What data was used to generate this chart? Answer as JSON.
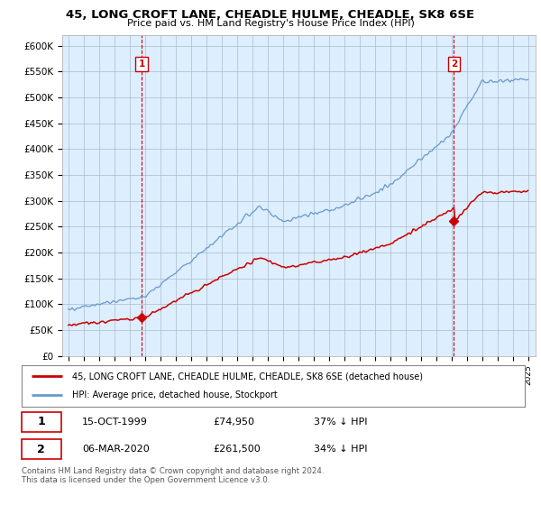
{
  "title": "45, LONG CROFT LANE, CHEADLE HULME, CHEADLE, SK8 6SE",
  "subtitle": "Price paid vs. HM Land Registry's House Price Index (HPI)",
  "ylabel_ticks": [
    "£0",
    "£50K",
    "£100K",
    "£150K",
    "£200K",
    "£250K",
    "£300K",
    "£350K",
    "£400K",
    "£450K",
    "£500K",
    "£550K",
    "£600K"
  ],
  "ytick_vals": [
    0,
    50000,
    100000,
    150000,
    200000,
    250000,
    300000,
    350000,
    400000,
    450000,
    500000,
    550000,
    600000
  ],
  "ylim": [
    0,
    620000
  ],
  "xlim_start": 1994.6,
  "xlim_end": 2025.5,
  "red_color": "#cc0000",
  "blue_color": "#6699cc",
  "plot_bg_color": "#ddeeff",
  "marker1_x": 1999.79,
  "marker1_y": 74950,
  "marker1_label": "1",
  "marker2_x": 2020.17,
  "marker2_y": 261500,
  "marker2_label": "2",
  "legend_line1": "45, LONG CROFT LANE, CHEADLE HULME, CHEADLE, SK8 6SE (detached house)",
  "legend_line2": "HPI: Average price, detached house, Stockport",
  "table_row1": [
    "1",
    "15-OCT-1999",
    "£74,950",
    "37% ↓ HPI"
  ],
  "table_row2": [
    "2",
    "06-MAR-2020",
    "£261,500",
    "34% ↓ HPI"
  ],
  "footer": "Contains HM Land Registry data © Crown copyright and database right 2024.\nThis data is licensed under the Open Government Licence v3.0.",
  "background_color": "#ffffff",
  "grid_color": "#aabbcc"
}
